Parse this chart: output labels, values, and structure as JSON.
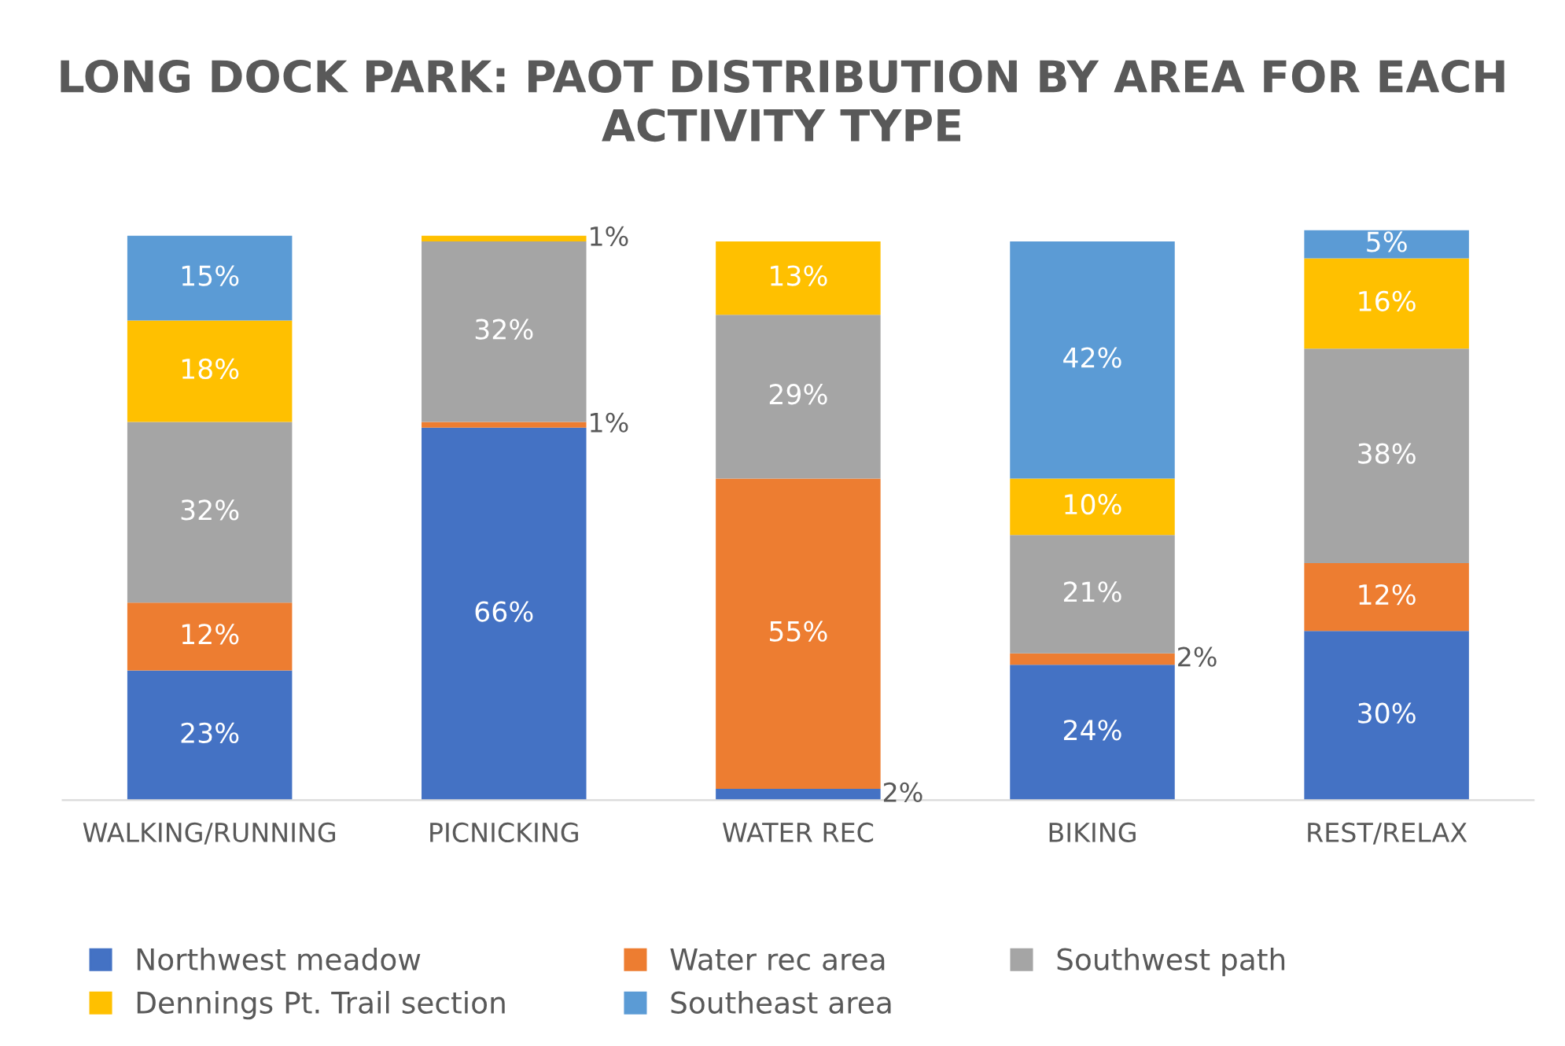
{
  "chart_data": {
    "type": "bar",
    "stacked": true,
    "title": "LONG DOCK PARK: PAOT DISTRIBUTION BY AREA FOR EACH ACTIVITY TYPE",
    "categories": [
      "WALKING/RUNNING",
      "PICNICKING",
      "WATER REC",
      "BIKING",
      "REST/RELAX"
    ],
    "series": [
      {
        "name": "Northwest meadow",
        "color": "#4472c4",
        "values": [
          23,
          66,
          2,
          24,
          30
        ],
        "value_labels": [
          "23%",
          "66%",
          "2%",
          "24%",
          "30%"
        ]
      },
      {
        "name": "Water rec area",
        "color": "#ed7d31",
        "values": [
          12,
          1,
          55,
          2,
          12
        ],
        "value_labels": [
          "12%",
          "1%",
          "55%",
          "2%",
          "12%"
        ]
      },
      {
        "name": "Southwest path",
        "color": "#a5a5a5",
        "values": [
          32,
          32,
          29,
          21,
          38
        ],
        "value_labels": [
          "32%",
          "32%",
          "29%",
          "21%",
          "38%"
        ]
      },
      {
        "name": "Dennings Pt. Trail section",
        "color": "#ffc000",
        "values": [
          18,
          1,
          13,
          10,
          16
        ],
        "value_labels": [
          "18%",
          "1%",
          "13%",
          "10%",
          "16%"
        ]
      },
      {
        "name": "Southeast area",
        "color": "#5b9bd5",
        "values": [
          15,
          0,
          0,
          42,
          5
        ],
        "value_labels": [
          "15%",
          null,
          null,
          "42%",
          "5%"
        ]
      }
    ],
    "legend": "bottom"
  }
}
